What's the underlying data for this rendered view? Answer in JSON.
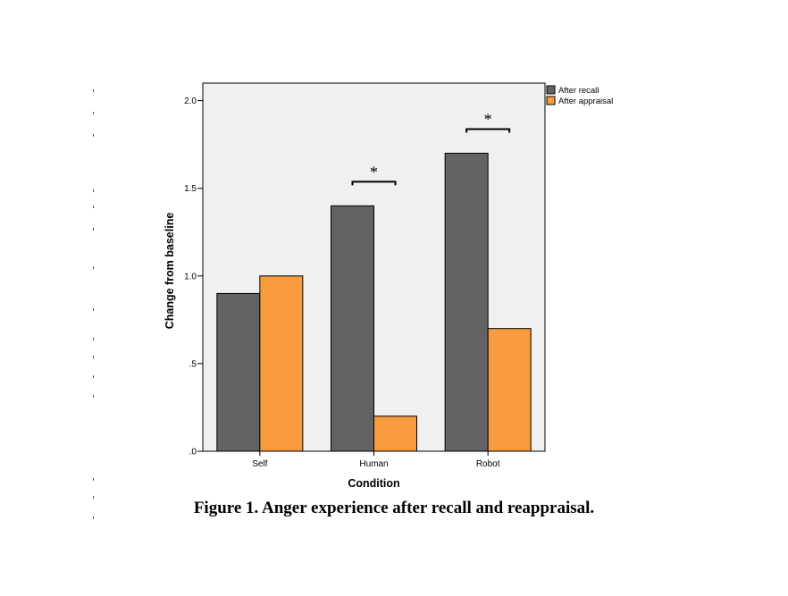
{
  "figure": {
    "caption": "Figure 1. Anger experience after recall and reappraisal."
  },
  "chart_data": {
    "type": "bar",
    "categories": [
      "Self",
      "Human",
      "Robot"
    ],
    "series": [
      {
        "name": "After recall",
        "values": [
          0.9,
          1.4,
          1.7
        ],
        "color": "#636363"
      },
      {
        "name": "After appraisal",
        "values": [
          1.0,
          0.2,
          0.7
        ],
        "color": "#f89a3e"
      }
    ],
    "xlabel": "Condition",
    "ylabel": "Change from baseline",
    "ylim": [
      0,
      2.1
    ],
    "yticks": [
      {
        "value": 0,
        "label": ".0"
      },
      {
        "value": 0.5,
        "label": ".5"
      },
      {
        "value": 1.0,
        "label": "1.0"
      },
      {
        "value": 1.5,
        "label": "1.5"
      },
      {
        "value": 2.0,
        "label": "2.0"
      }
    ],
    "grid": false,
    "legend_position": "top-right",
    "plot_background": "#f0f0f0",
    "annotations": [
      {
        "category": "Human",
        "text": "*"
      },
      {
        "category": "Robot",
        "text": "*"
      }
    ]
  }
}
